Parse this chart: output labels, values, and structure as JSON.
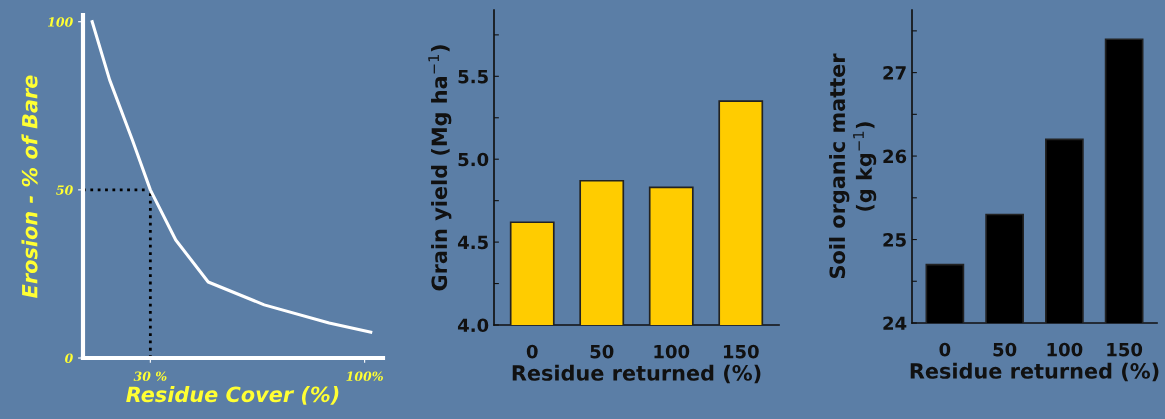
{
  "chart_data": [
    {
      "type": "line",
      "xlabel": "Residue Cover (%)",
      "ylabel": "Erosion - % of Bare",
      "series": [
        {
          "color": "#ffffff",
          "x": [
            11,
            16.7,
            24.1,
            30,
            38.3,
            48.9,
            67.2,
            88.4,
            102
          ],
          "values": [
            100,
            82.7,
            64.9,
            50,
            35.1,
            22.6,
            15.8,
            10.4,
            7.7
          ]
        }
      ],
      "xlim": [
        8,
        106
      ],
      "xticks": [
        {
          "value": 30,
          "label": "30 %"
        },
        {
          "value": 100,
          "label": "100%"
        }
      ],
      "ylim": [
        0,
        102
      ],
      "yticks": [
        0,
        50,
        100
      ],
      "grid": false,
      "legend": false,
      "marker": "none",
      "line_style": "solid",
      "ref_lines": [
        {
          "axis": "y",
          "value": 50,
          "color": "#000000",
          "line_style": "dotted"
        },
        {
          "axis": "x",
          "value": 30,
          "color": "#000000",
          "line_style": "dotted"
        }
      ]
    },
    {
      "type": "bar",
      "xlabel": "Residue returned (%)",
      "ylabel": "Grain yield (Mg ha$^{−1}$)",
      "categories": [
        "0",
        "50",
        "100",
        "150"
      ],
      "values": [
        4.62,
        4.87,
        4.83,
        5.35
      ],
      "color": "#ffcc00",
      "ylim": [
        4.0,
        5.9
      ],
      "yticks": [
        {
          "value": 4.0,
          "label": "4.0"
        },
        {
          "value": 4.25,
          "label": null
        },
        {
          "value": 4.5,
          "label": "4.5"
        },
        {
          "value": 4.75,
          "label": null
        },
        {
          "value": 5.0,
          "label": "5.0"
        },
        {
          "value": 5.25,
          "label": null
        },
        {
          "value": 5.5,
          "label": "5.5"
        },
        {
          "value": 5.75,
          "label": null
        }
      ],
      "grid": false,
      "legend": false
    },
    {
      "type": "bar",
      "xlabel": "Residue returned (%)",
      "ylabel": "Soil organic matter\n(g kg$^{−1}$)",
      "categories": [
        "0",
        "50",
        "100",
        "150"
      ],
      "values": [
        24.7,
        25.3,
        26.2,
        27.4
      ],
      "color": "#000000",
      "ylim": [
        24,
        27.75
      ],
      "yticks": [
        24,
        {
          "value": 24.5,
          "label": null
        },
        25,
        {
          "value": 25.5,
          "label": null
        },
        26,
        {
          "value": 26.5,
          "label": null
        },
        27,
        {
          "value": 27.5,
          "label": null
        }
      ],
      "grid": false,
      "legend": false
    }
  ]
}
